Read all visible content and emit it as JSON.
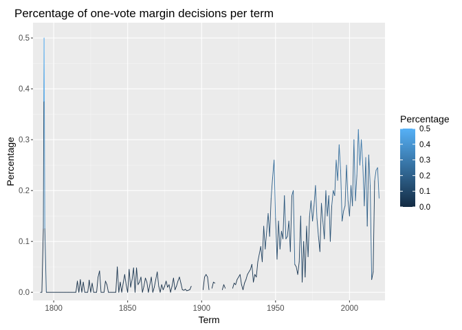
{
  "chart_data": {
    "type": "line",
    "title": "Percentage of one-vote margin decisions per term",
    "xlabel": "Term",
    "ylabel": "Percentage",
    "xlim": [
      1786,
      2024
    ],
    "ylim": [
      -0.016,
      0.53
    ],
    "x_ticks": [
      1800,
      1850,
      1900,
      1950,
      2000
    ],
    "x_tick_labels": [
      "1800",
      "1850",
      "1900",
      "1950",
      "2000"
    ],
    "y_ticks": [
      0.0,
      0.1,
      0.2,
      0.3,
      0.4,
      0.5
    ],
    "y_tick_labels": [
      "0.0",
      "0.1",
      "0.2",
      "0.3",
      "0.4",
      "0.5"
    ],
    "grid": true,
    "legend": {
      "title": "Percentage",
      "position": "right",
      "range": [
        0,
        0.5
      ],
      "labels": [
        "0.5",
        "0.4",
        "0.3",
        "0.2",
        "0.1",
        "0.0"
      ],
      "colors": {
        "low": "#132B43",
        "high": "#56B1F7"
      }
    },
    "segments": [
      [
        [
          1791,
          0
        ],
        [
          1792,
          0
        ],
        [
          1793,
          0.125
        ],
        [
          1793.3,
          0.375
        ],
        [
          1793.5,
          0.5
        ],
        [
          1793.7,
          0.375
        ],
        [
          1794,
          0.125
        ],
        [
          1795,
          0
        ],
        [
          1796,
          0
        ],
        [
          1797,
          0
        ],
        [
          1798,
          0
        ],
        [
          1799,
          0
        ],
        [
          1800,
          0
        ],
        [
          1801,
          0
        ],
        [
          1802,
          0
        ],
        [
          1803,
          0
        ],
        [
          1804,
          0
        ],
        [
          1805,
          0
        ],
        [
          1806,
          0
        ],
        [
          1807,
          0
        ],
        [
          1808,
          0
        ],
        [
          1809,
          0
        ],
        [
          1810,
          0
        ],
        [
          1811,
          0
        ],
        [
          1812,
          0
        ],
        [
          1813,
          0
        ],
        [
          1814,
          0
        ],
        [
          1815,
          0
        ],
        [
          1816,
          0.022
        ],
        [
          1817,
          0
        ],
        [
          1818,
          0.025
        ],
        [
          1819,
          0
        ],
        [
          1820,
          0.02
        ],
        [
          1821,
          0
        ],
        [
          1822,
          0
        ],
        [
          1823,
          0
        ],
        [
          1824,
          0.024
        ],
        [
          1825,
          0
        ],
        [
          1826,
          0.018
        ],
        [
          1827,
          0
        ],
        [
          1828,
          0
        ],
        [
          1829,
          0
        ],
        [
          1830,
          0.03
        ],
        [
          1831,
          0.042
        ],
        [
          1832,
          0
        ],
        [
          1833,
          0
        ],
        [
          1834,
          0
        ],
        [
          1835,
          0.022
        ],
        [
          1836,
          0.015
        ],
        [
          1837,
          0
        ],
        [
          1838,
          0
        ],
        [
          1839,
          0
        ],
        [
          1840,
          0
        ],
        [
          1841,
          0
        ],
        [
          1842,
          0
        ],
        [
          1843,
          0.05
        ],
        [
          1844,
          0
        ],
        [
          1845,
          0.02
        ],
        [
          1846,
          0
        ],
        [
          1847,
          0.018
        ],
        [
          1848,
          0.035
        ],
        [
          1849,
          0.015
        ],
        [
          1850,
          0
        ],
        [
          1851,
          0.045
        ],
        [
          1852,
          0.01
        ],
        [
          1853,
          0.025
        ],
        [
          1854,
          0.048
        ],
        [
          1855,
          0
        ],
        [
          1856,
          0.048
        ],
        [
          1857,
          0.015
        ],
        [
          1858,
          0.02
        ],
        [
          1859,
          0.03
        ],
        [
          1860,
          0
        ],
        [
          1861,
          0.012
        ],
        [
          1862,
          0.028
        ],
        [
          1863,
          0.02
        ],
        [
          1864,
          0
        ],
        [
          1865,
          0.015
        ],
        [
          1866,
          0.03
        ],
        [
          1867,
          0
        ],
        [
          1868,
          0.01
        ],
        [
          1869,
          0.025
        ],
        [
          1870,
          0.04
        ],
        [
          1871,
          0.012
        ],
        [
          1872,
          0
        ],
        [
          1873,
          0.015
        ],
        [
          1874,
          0.005
        ],
        [
          1875,
          0.012
        ],
        [
          1876,
          0.022
        ],
        [
          1877,
          0.01
        ],
        [
          1878,
          0.015
        ],
        [
          1879,
          0
        ],
        [
          1880,
          0.012
        ],
        [
          1881,
          0.028
        ],
        [
          1882,
          0.005
        ],
        [
          1883,
          0.012
        ],
        [
          1884,
          0.022
        ],
        [
          1885,
          0.03
        ],
        [
          1886,
          0.018
        ],
        [
          1887,
          0.005
        ],
        [
          1888,
          0.004
        ],
        [
          1889,
          0.006
        ],
        [
          1890,
          0.003
        ],
        [
          1891,
          0.004
        ],
        [
          1892,
          0.005
        ],
        [
          1893,
          0.012
        ]
      ],
      [
        [
          1901,
          0.005
        ],
        [
          1902,
          0.03
        ],
        [
          1903,
          0.035
        ],
        [
          1904,
          0.03
        ],
        [
          1905,
          0.005
        ]
      ],
      [
        [
          1907,
          0.008
        ],
        [
          1908,
          0.02
        ],
        [
          1909,
          0.018
        ]
      ],
      [
        [
          1914,
          0.005
        ],
        [
          1915,
          0.015
        ],
        [
          1916,
          0.008
        ]
      ],
      [
        [
          1921,
          0.008
        ],
        [
          1922,
          0.018
        ],
        [
          1923,
          0.015
        ],
        [
          1924,
          0.025
        ],
        [
          1925,
          0.03
        ],
        [
          1926,
          0.035
        ],
        [
          1927,
          0.015
        ],
        [
          1928,
          0.005
        ],
        [
          1929,
          0.018
        ],
        [
          1930,
          0.025
        ],
        [
          1931,
          0.035
        ],
        [
          1932,
          0.04
        ],
        [
          1933,
          0.045
        ],
        [
          1934,
          0.055
        ],
        [
          1935,
          0.02
        ],
        [
          1936,
          0.035
        ],
        [
          1937,
          0.03
        ],
        [
          1938,
          0.06
        ],
        [
          1939,
          0.075
        ],
        [
          1940,
          0.09
        ],
        [
          1941,
          0.06
        ],
        [
          1942,
          0.13
        ],
        [
          1943,
          0.085
        ],
        [
          1944,
          0.12
        ],
        [
          1945,
          0.155
        ],
        [
          1946,
          0.11
        ],
        [
          1947,
          0.185
        ],
        [
          1948,
          0.225
        ],
        [
          1949,
          0.26
        ],
        [
          1950,
          0.145
        ],
        [
          1951,
          0.065
        ],
        [
          1952,
          0.14
        ],
        [
          1953,
          0.085
        ],
        [
          1954,
          0.12
        ],
        [
          1955,
          0.105
        ],
        [
          1956,
          0.19
        ],
        [
          1957,
          0.105
        ],
        [
          1958,
          0.11
        ],
        [
          1959,
          0.14
        ],
        [
          1960,
          0.08
        ],
        [
          1961,
          0.19
        ],
        [
          1962,
          0.2
        ],
        [
          1963,
          0.055
        ],
        [
          1964,
          0.05
        ],
        [
          1965,
          0.035
        ],
        [
          1966,
          0.06
        ],
        [
          1967,
          0.15
        ],
        [
          1968,
          0.02
        ],
        [
          1969,
          0.1
        ],
        [
          1970,
          0.03
        ],
        [
          1971,
          0.13
        ],
        [
          1972,
          0.07
        ],
        [
          1973,
          0.15
        ],
        [
          1974,
          0.18
        ],
        [
          1975,
          0.14
        ],
        [
          1976,
          0.17
        ],
        [
          1977,
          0.21
        ],
        [
          1978,
          0.145
        ],
        [
          1979,
          0.11
        ],
        [
          1980,
          0.08
        ],
        [
          1981,
          0.175
        ],
        [
          1982,
          0.14
        ],
        [
          1983,
          0.105
        ],
        [
          1984,
          0.2
        ],
        [
          1985,
          0.15
        ],
        [
          1986,
          0.19
        ],
        [
          1987,
          0.1
        ],
        [
          1988,
          0.17
        ],
        [
          1989,
          0.2
        ],
        [
          1990,
          0.19
        ],
        [
          1991,
          0.26
        ],
        [
          1992,
          0.22
        ],
        [
          1993,
          0.29
        ],
        [
          1994,
          0.24
        ],
        [
          1995,
          0.14
        ],
        [
          1996,
          0.16
        ],
        [
          1997,
          0.17
        ],
        [
          1998,
          0.25
        ],
        [
          1999,
          0.18
        ],
        [
          2000,
          0.15
        ],
        [
          2001,
          0.21
        ],
        [
          2002,
          0.17
        ],
        [
          2003,
          0.3
        ],
        [
          2004,
          0.18
        ],
        [
          2005,
          0.23
        ],
        [
          2006,
          0.32
        ],
        [
          2007,
          0.25
        ],
        [
          2008,
          0.3
        ],
        [
          2009,
          0.25
        ],
        [
          2010,
          0.17
        ],
        [
          2011,
          0.265
        ],
        [
          2012,
          0.13
        ],
        [
          2013,
          0.27
        ],
        [
          2014,
          0.21
        ],
        [
          2015,
          0.025
        ],
        [
          2016,
          0.04
        ],
        [
          2017,
          0.22
        ],
        [
          2018,
          0.24
        ],
        [
          2019,
          0.245
        ],
        [
          2020,
          0.185
        ]
      ]
    ]
  }
}
